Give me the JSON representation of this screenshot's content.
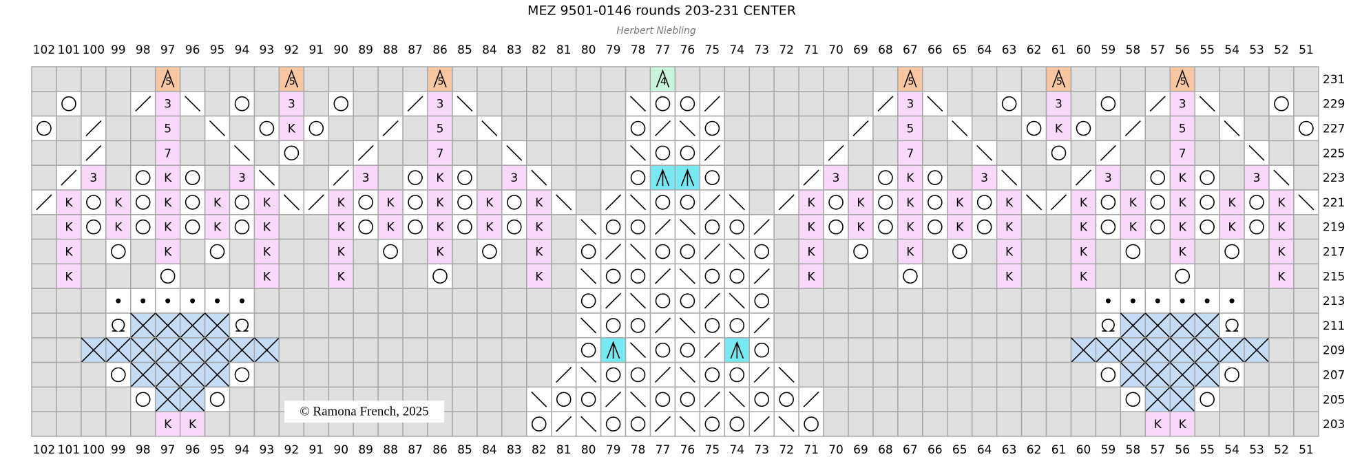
{
  "title": "MEZ 9501-0146 rounds 203-231 CENTER",
  "subtitle": "Herbert Niebling",
  "copyright": "©  Ramona French, 2025",
  "columns": [
    102,
    101,
    100,
    99,
    98,
    97,
    96,
    95,
    94,
    93,
    92,
    91,
    90,
    89,
    88,
    87,
    86,
    85,
    84,
    83,
    82,
    81,
    80,
    79,
    78,
    77,
    76,
    75,
    74,
    73,
    72,
    71,
    70,
    69,
    68,
    67,
    66,
    65,
    64,
    63,
    62,
    61,
    60,
    59,
    58,
    57,
    56,
    55,
    54,
    53,
    52,
    51
  ],
  "rows": [
    {
      "number": 231,
      "cells": {
        "97": "5",
        "92": "5",
        "86": "5",
        "77": "4",
        "67": "5",
        "61": "5",
        "56": "5"
      }
    },
    {
      "number": 229,
      "cells": {
        "97": "3",
        "92": "3",
        "86": "3",
        "67": "3",
        "61": "3",
        "56": "3"
      }
    },
    {
      "number": 227,
      "cells": {
        "97": "5",
        "92": "K",
        "86": "5",
        "67": "5",
        "61": "K",
        "56": "5"
      }
    },
    {
      "number": 225,
      "cells": {
        "97": "7",
        "86": "7",
        "67": "7",
        "56": "7"
      }
    },
    {
      "number": 223,
      "cells": {
        "100": "3",
        "97": "K",
        "94": "3",
        "89": "3",
        "86": "K",
        "83": "3",
        "70": "3",
        "67": "K",
        "64": "3",
        "59": "3",
        "56": "K",
        "53": "3"
      }
    },
    {
      "number": 221,
      "cells": {
        "101": "K",
        "99": "K",
        "97": "K",
        "95": "K",
        "93": "K",
        "90": "K",
        "88": "K",
        "86": "K",
        "84": "K",
        "82": "K",
        "71": "K",
        "69": "K",
        "67": "K",
        "65": "K",
        "63": "K",
        "60": "K",
        "58": "K",
        "56": "K",
        "54": "K",
        "52": "K"
      }
    },
    {
      "number": 219,
      "cells": {
        "101": "K",
        "99": "K",
        "97": "K",
        "95": "K",
        "93": "K",
        "90": "K",
        "88": "K",
        "86": "K",
        "84": "K",
        "82": "K",
        "71": "K",
        "69": "K",
        "67": "K",
        "65": "K",
        "63": "K",
        "60": "K",
        "58": "K",
        "56": "K",
        "54": "K",
        "52": "K"
      }
    },
    {
      "number": 217,
      "cells": {
        "101": "K",
        "97": "K",
        "93": "K",
        "90": "K",
        "86": "K",
        "82": "K",
        "71": "K",
        "67": "K",
        "63": "K",
        "60": "K",
        "56": "K",
        "52": "K"
      }
    },
    {
      "number": 215,
      "cells": {
        "101": "K",
        "93": "K",
        "90": "K",
        "82": "K",
        "71": "K",
        "63": "K",
        "60": "K",
        "52": "K"
      }
    },
    {
      "number": 213,
      "cells": {}
    },
    {
      "number": 211,
      "cells": {}
    },
    {
      "number": 209,
      "cells": {}
    },
    {
      "number": 207,
      "cells": {}
    },
    {
      "number": 205,
      "cells": {}
    },
    {
      "number": 203,
      "cells": {
        "97": "K",
        "96": "K",
        "57": "K",
        "56": "K"
      }
    }
  ]
}
